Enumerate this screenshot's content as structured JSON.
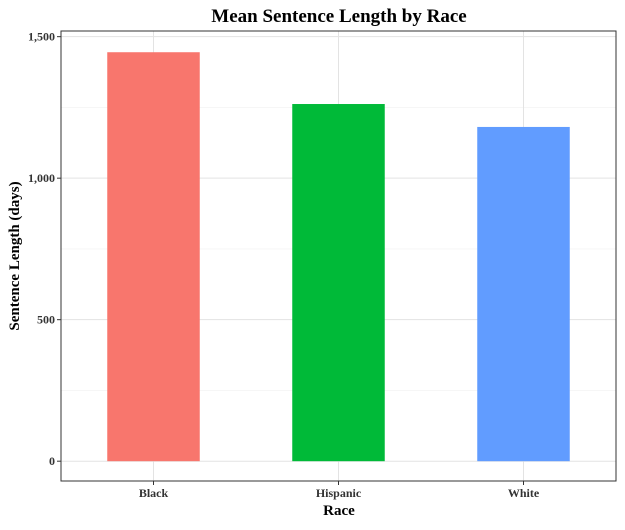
{
  "chart_data": {
    "type": "bar",
    "title": "Mean Sentence Length by Race",
    "xlabel": "Race",
    "ylabel": "Sentence Length (days)",
    "categories": [
      "Black",
      "Hispanic",
      "White"
    ],
    "values": [
      1445,
      1262,
      1181
    ],
    "colors": [
      "#F8766D",
      "#00BA38",
      "#619CFF"
    ],
    "ylim": [
      -70,
      1520
    ],
    "yticks": [
      0,
      500,
      1000,
      1500
    ],
    "ytick_labels": [
      "0",
      "500",
      "1,000",
      "1,500"
    ],
    "grid": true,
    "legend": "none"
  }
}
